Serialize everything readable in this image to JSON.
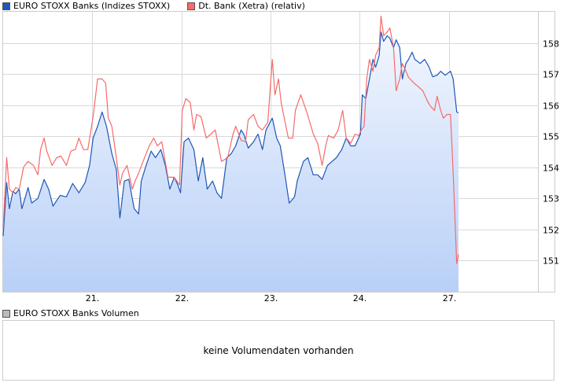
{
  "legend": [
    {
      "label": "EURO STOXX Banks (Indizes STOXX)",
      "color": "#1f56b8"
    },
    {
      "label": "Dt. Bank (Xetra) (relativ)",
      "color": "#f76a6a"
    }
  ],
  "volume": {
    "legend_label": "EURO STOXX Banks Volumen",
    "legend_color": "#bbbbbb",
    "message": "keine Volumendaten vorhanden"
  },
  "chart_data": {
    "type": "line",
    "x_unit": "day of month (trading days, weekend 25.-26. skipped)",
    "xlim": [
      20,
      28
    ],
    "ylim": [
      150,
      159
    ],
    "x_ticks": [
      {
        "value": 21,
        "label": "21."
      },
      {
        "value": 22,
        "label": "22."
      },
      {
        "value": 23,
        "label": "23."
      },
      {
        "value": 24,
        "label": "24."
      },
      {
        "value": 27,
        "label": "27."
      }
    ],
    "y_ticks": [
      151,
      152,
      153,
      154,
      155,
      156,
      157,
      158
    ],
    "grid": true,
    "legend_position": "top-left",
    "fill_colors": [
      "#f2f6fe",
      "#b8d0f7"
    ],
    "series": [
      {
        "name": "EURO STOXX Banks (Indizes STOXX)",
        "color": "#1f56b8",
        "filled": true,
        "points": [
          [
            20.0,
            151.79
          ],
          [
            20.04,
            153.51
          ],
          [
            20.07,
            152.67
          ],
          [
            20.11,
            153.23
          ],
          [
            20.14,
            153.15
          ],
          [
            20.18,
            153.3
          ],
          [
            20.21,
            152.67
          ],
          [
            20.25,
            153.05
          ],
          [
            20.28,
            153.35
          ],
          [
            20.32,
            152.85
          ],
          [
            20.39,
            153.0
          ],
          [
            20.46,
            153.61
          ],
          [
            20.51,
            153.3
          ],
          [
            20.56,
            152.75
          ],
          [
            20.64,
            153.1
          ],
          [
            20.71,
            153.05
          ],
          [
            20.78,
            153.48
          ],
          [
            20.85,
            153.18
          ],
          [
            20.92,
            153.51
          ],
          [
            20.97,
            154.06
          ],
          [
            21.01,
            154.94
          ],
          [
            21.06,
            155.32
          ],
          [
            21.11,
            155.78
          ],
          [
            21.16,
            155.32
          ],
          [
            21.22,
            154.44
          ],
          [
            21.27,
            153.93
          ],
          [
            21.31,
            152.37
          ],
          [
            21.36,
            153.56
          ],
          [
            21.41,
            153.61
          ],
          [
            21.47,
            152.67
          ],
          [
            21.52,
            152.5
          ],
          [
            21.55,
            153.56
          ],
          [
            21.61,
            154.11
          ],
          [
            21.66,
            154.52
          ],
          [
            21.71,
            154.31
          ],
          [
            21.77,
            154.57
          ],
          [
            21.82,
            154.06
          ],
          [
            21.87,
            153.3
          ],
          [
            21.92,
            153.68
          ],
          [
            21.96,
            153.43
          ],
          [
            21.99,
            153.18
          ],
          [
            22.03,
            154.82
          ],
          [
            22.08,
            154.94
          ],
          [
            22.14,
            154.57
          ],
          [
            22.19,
            153.56
          ],
          [
            22.24,
            154.31
          ],
          [
            22.29,
            153.3
          ],
          [
            22.35,
            153.56
          ],
          [
            22.4,
            153.18
          ],
          [
            22.45,
            153.0
          ],
          [
            22.51,
            154.31
          ],
          [
            22.56,
            154.44
          ],
          [
            22.61,
            154.69
          ],
          [
            22.67,
            155.2
          ],
          [
            22.7,
            155.07
          ],
          [
            22.75,
            154.62
          ],
          [
            22.81,
            154.82
          ],
          [
            22.86,
            155.07
          ],
          [
            22.91,
            154.57
          ],
          [
            22.95,
            155.2
          ],
          [
            23.02,
            155.58
          ],
          [
            23.07,
            154.94
          ],
          [
            23.11,
            154.69
          ],
          [
            23.16,
            153.81
          ],
          [
            23.21,
            152.85
          ],
          [
            23.27,
            153.05
          ],
          [
            23.3,
            153.56
          ],
          [
            23.37,
            154.19
          ],
          [
            23.42,
            154.31
          ],
          [
            23.48,
            153.76
          ],
          [
            23.53,
            153.76
          ],
          [
            23.58,
            153.61
          ],
          [
            23.64,
            154.06
          ],
          [
            23.69,
            154.19
          ],
          [
            23.74,
            154.31
          ],
          [
            23.8,
            154.57
          ],
          [
            23.85,
            154.94
          ],
          [
            23.9,
            154.69
          ],
          [
            23.95,
            154.69
          ],
          [
            24.01,
            155.07
          ],
          [
            24.03,
            156.33
          ],
          [
            24.07,
            156.21
          ],
          [
            24.11,
            156.84
          ],
          [
            24.15,
            157.47
          ],
          [
            24.18,
            157.22
          ],
          [
            24.22,
            157.6
          ],
          [
            24.24,
            158.35
          ],
          [
            24.27,
            158.05
          ],
          [
            24.31,
            158.23
          ],
          [
            24.34,
            158.15
          ],
          [
            24.38,
            157.85
          ],
          [
            24.41,
            158.1
          ],
          [
            24.45,
            157.85
          ],
          [
            24.48,
            156.84
          ],
          [
            24.52,
            157.34
          ],
          [
            24.55,
            157.47
          ],
          [
            24.59,
            157.7
          ],
          [
            24.62,
            157.47
          ],
          [
            24.68,
            157.34
          ],
          [
            24.73,
            157.47
          ],
          [
            24.78,
            157.22
          ],
          [
            24.82,
            156.91
          ],
          [
            24.87,
            156.96
          ],
          [
            24.91,
            157.09
          ],
          [
            24.96,
            156.96
          ],
          [
            27.02,
            157.09
          ],
          [
            27.05,
            156.84
          ],
          [
            27.09,
            155.78
          ],
          [
            27.11,
            155.75
          ]
        ]
      },
      {
        "name": "Dt. Bank (Xetra) (relativ)",
        "color": "#f76a6a",
        "filled": false,
        "points": [
          [
            20.0,
            152.04
          ],
          [
            20.04,
            154.31
          ],
          [
            20.07,
            153.3
          ],
          [
            20.11,
            153.18
          ],
          [
            20.14,
            153.35
          ],
          [
            20.18,
            153.3
          ],
          [
            20.23,
            154.01
          ],
          [
            20.28,
            154.19
          ],
          [
            20.34,
            154.06
          ],
          [
            20.39,
            153.76
          ],
          [
            20.42,
            154.57
          ],
          [
            20.46,
            154.94
          ],
          [
            20.49,
            154.52
          ],
          [
            20.55,
            154.06
          ],
          [
            20.6,
            154.31
          ],
          [
            20.65,
            154.36
          ],
          [
            20.71,
            154.06
          ],
          [
            20.76,
            154.52
          ],
          [
            20.81,
            154.57
          ],
          [
            20.85,
            154.94
          ],
          [
            20.9,
            154.57
          ],
          [
            20.95,
            154.57
          ],
          [
            21.01,
            155.63
          ],
          [
            21.06,
            156.84
          ],
          [
            21.11,
            156.84
          ],
          [
            21.15,
            156.71
          ],
          [
            21.18,
            155.58
          ],
          [
            21.22,
            155.32
          ],
          [
            21.27,
            154.31
          ],
          [
            21.31,
            153.43
          ],
          [
            21.34,
            153.81
          ],
          [
            21.39,
            154.06
          ],
          [
            21.45,
            153.3
          ],
          [
            21.48,
            153.56
          ],
          [
            21.52,
            153.81
          ],
          [
            21.57,
            154.19
          ],
          [
            21.64,
            154.69
          ],
          [
            21.69,
            154.94
          ],
          [
            21.73,
            154.69
          ],
          [
            21.78,
            154.82
          ],
          [
            21.85,
            153.68
          ],
          [
            21.92,
            153.68
          ],
          [
            21.98,
            153.43
          ],
          [
            22.01,
            155.83
          ],
          [
            22.05,
            156.21
          ],
          [
            22.1,
            156.08
          ],
          [
            22.14,
            155.2
          ],
          [
            22.17,
            155.7
          ],
          [
            22.22,
            155.63
          ],
          [
            22.28,
            154.94
          ],
          [
            22.33,
            155.07
          ],
          [
            22.38,
            155.2
          ],
          [
            22.45,
            154.19
          ],
          [
            22.52,
            154.31
          ],
          [
            22.58,
            155.07
          ],
          [
            22.61,
            155.32
          ],
          [
            22.67,
            154.87
          ],
          [
            22.72,
            154.82
          ],
          [
            22.75,
            155.53
          ],
          [
            22.81,
            155.7
          ],
          [
            22.86,
            155.32
          ],
          [
            22.91,
            155.2
          ],
          [
            22.97,
            155.45
          ],
          [
            23.02,
            157.47
          ],
          [
            23.05,
            156.33
          ],
          [
            23.09,
            156.84
          ],
          [
            23.12,
            156.08
          ],
          [
            23.2,
            154.94
          ],
          [
            23.25,
            154.94
          ],
          [
            23.28,
            155.83
          ],
          [
            23.34,
            156.33
          ],
          [
            23.41,
            155.75
          ],
          [
            23.48,
            155.07
          ],
          [
            23.53,
            154.77
          ],
          [
            23.58,
            154.06
          ],
          [
            23.62,
            154.69
          ],
          [
            23.65,
            155.02
          ],
          [
            23.71,
            154.94
          ],
          [
            23.76,
            155.2
          ],
          [
            23.81,
            155.83
          ],
          [
            23.85,
            154.94
          ],
          [
            23.9,
            154.77
          ],
          [
            23.95,
            155.07
          ],
          [
            23.99,
            155.02
          ],
          [
            24.02,
            155.2
          ],
          [
            24.05,
            155.32
          ],
          [
            24.08,
            156.84
          ],
          [
            24.11,
            157.47
          ],
          [
            24.15,
            157.09
          ],
          [
            24.18,
            157.6
          ],
          [
            24.22,
            157.85
          ],
          [
            24.24,
            158.86
          ],
          [
            24.27,
            158.23
          ],
          [
            24.31,
            158.35
          ],
          [
            24.34,
            158.48
          ],
          [
            24.38,
            157.85
          ],
          [
            24.41,
            156.46
          ],
          [
            24.45,
            156.84
          ],
          [
            24.48,
            157.34
          ],
          [
            24.52,
            157.09
          ],
          [
            24.55,
            156.89
          ],
          [
            24.61,
            156.71
          ],
          [
            24.66,
            156.59
          ],
          [
            24.71,
            156.46
          ],
          [
            24.77,
            156.08
          ],
          [
            24.8,
            155.95
          ],
          [
            24.84,
            155.83
          ],
          [
            24.87,
            156.28
          ],
          [
            24.91,
            155.83
          ],
          [
            24.94,
            155.58
          ],
          [
            24.98,
            155.7
          ],
          [
            27.02,
            155.7
          ],
          [
            27.05,
            153.81
          ],
          [
            27.09,
            150.9
          ],
          [
            27.11,
            151.2
          ]
        ]
      }
    ]
  }
}
